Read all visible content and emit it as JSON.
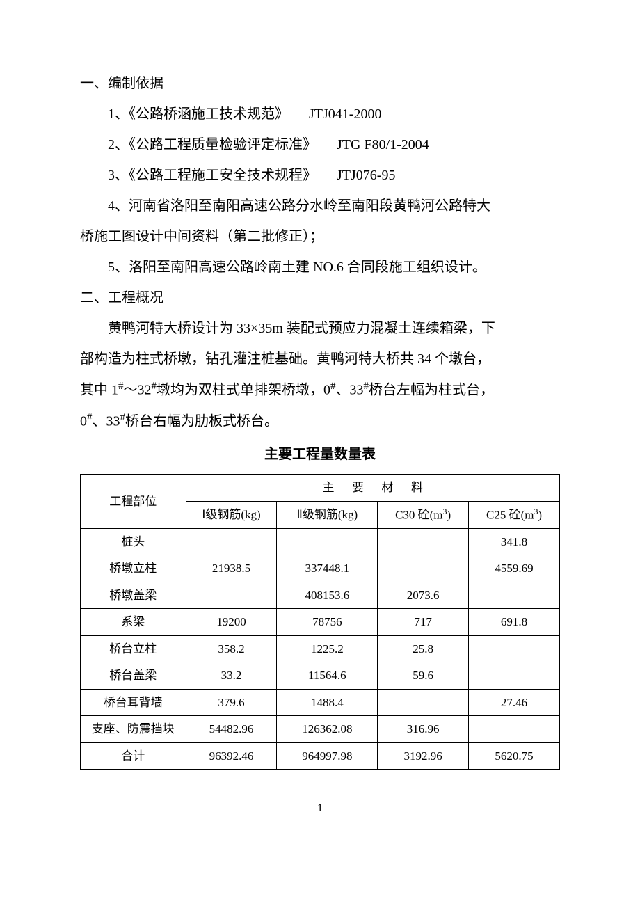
{
  "section1": {
    "heading": "一、编制依据",
    "items": [
      {
        "text": "1、《公路桥涵施工技术规范》",
        "code": "JTJ041-2000"
      },
      {
        "text": "2、《公路工程质量检验评定标准》",
        "code": "JTG F80/1-2004"
      },
      {
        "text": "3、《公路工程施工安全技术规程》",
        "code": "JTJ076-95"
      }
    ],
    "item4_line1": "4、河南省洛阳至南阳高速公路分水岭至南阳段黄鸭河公路特大",
    "item4_line2": "桥施工图设计中间资料（第二批修正）；",
    "item5": "5、洛阳至南阳高速公路岭南土建 NO.6 合同段施工组织设计。"
  },
  "section2": {
    "heading": "二、工程概况",
    "para_line1": "黄鸭河特大桥设计为 33×35m 装配式预应力混凝土连续箱梁，下",
    "para_line2_a": "部构造为柱式桥墩，钻孔灌注桩基础。黄鸭河特大桥共 34 个墩台，",
    "para_line3_a": "其中 1",
    "para_line3_b": "～32",
    "para_line3_c": "墩均为双柱式单排架桥墩，0",
    "para_line3_d": "、33",
    "para_line3_e": "桥台左幅为柱式台，",
    "para_line4_a": "0",
    "para_line4_b": "、33",
    "para_line4_c": "桥台右幅为肋板式桥台。",
    "hash": "#"
  },
  "table": {
    "title": "主要工程量数量表",
    "header_col1": "工程部位",
    "header_span": "主要材料",
    "subheaders": {
      "c1": "Ⅰ级钢筋(kg)",
      "c2": "Ⅱ级钢筋(kg)",
      "c3_a": "C30 砼(m",
      "c3_b": ")",
      "c4_a": "C25 砼(m",
      "c4_b": ")",
      "sup3": "3"
    },
    "rows": [
      {
        "label": "桩头",
        "c1": "",
        "c2": "",
        "c3": "",
        "c4": "341.8"
      },
      {
        "label": "桥墩立柱",
        "c1": "21938.5",
        "c2": "337448.1",
        "c3": "",
        "c4": "4559.69"
      },
      {
        "label": "桥墩盖梁",
        "c1": "",
        "c2": "408153.6",
        "c3": "2073.6",
        "c4": ""
      },
      {
        "label": "系梁",
        "c1": "19200",
        "c2": "78756",
        "c3": "717",
        "c4": "691.8"
      },
      {
        "label": "桥台立柱",
        "c1": "358.2",
        "c2": "1225.2",
        "c3": "25.8",
        "c4": ""
      },
      {
        "label": "桥台盖梁",
        "c1": "33.2",
        "c2": "11564.6",
        "c3": "59.6",
        "c4": ""
      },
      {
        "label": "桥台耳背墙",
        "c1": "379.6",
        "c2": "1488.4",
        "c3": "",
        "c4": "27.46"
      },
      {
        "label": "支座、防震挡块",
        "c1": "54482.96",
        "c2": "126362.08",
        "c3": "316.96",
        "c4": ""
      },
      {
        "label": "合计",
        "c1": "96392.46",
        "c2": "964997.98",
        "c3": "3192.96",
        "c4": "5620.75"
      }
    ],
    "col_widths": [
      "22%",
      "19%",
      "21%",
      "19%",
      "19%"
    ],
    "border_color": "#000000",
    "font_size": 17
  },
  "page_number": "1",
  "colors": {
    "text": "#000000",
    "background": "#ffffff"
  }
}
